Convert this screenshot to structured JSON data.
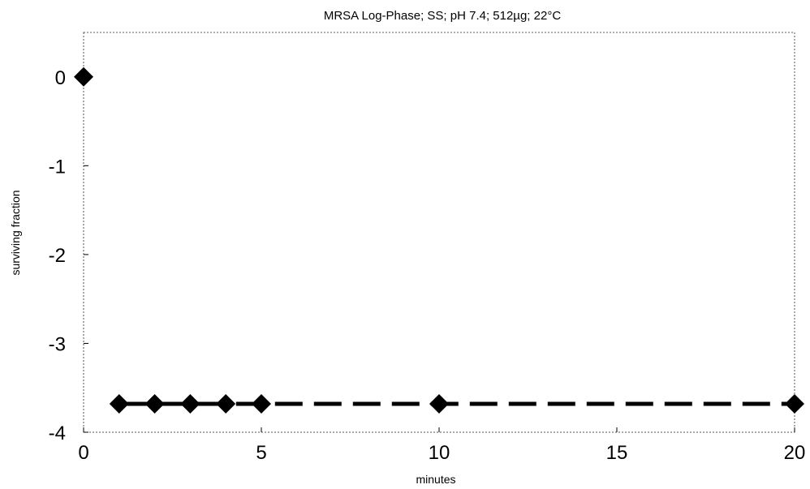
{
  "chart_data": {
    "type": "line",
    "title": "MRSA Log-Phase; SS; pH 7.4; 512µg; 22°C",
    "xlabel": "minutes",
    "ylabel": "surviving fraction",
    "xlim": [
      0,
      20
    ],
    "ylim": [
      -4,
      0.5
    ],
    "x_ticks": [
      0,
      5,
      10,
      15,
      20
    ],
    "y_ticks": [
      0,
      -1,
      -2,
      -3,
      -4
    ],
    "grid": false,
    "legend": "none",
    "series": [
      {
        "marker": "diamond",
        "line_style": "dashed",
        "color": "#000000",
        "x": [
          0,
          1,
          2,
          3,
          4,
          5,
          10,
          20
        ],
        "y": [
          0,
          -3.68,
          -3.68,
          -3.68,
          -3.68,
          -3.68,
          -3.68,
          -3.68
        ]
      }
    ]
  }
}
